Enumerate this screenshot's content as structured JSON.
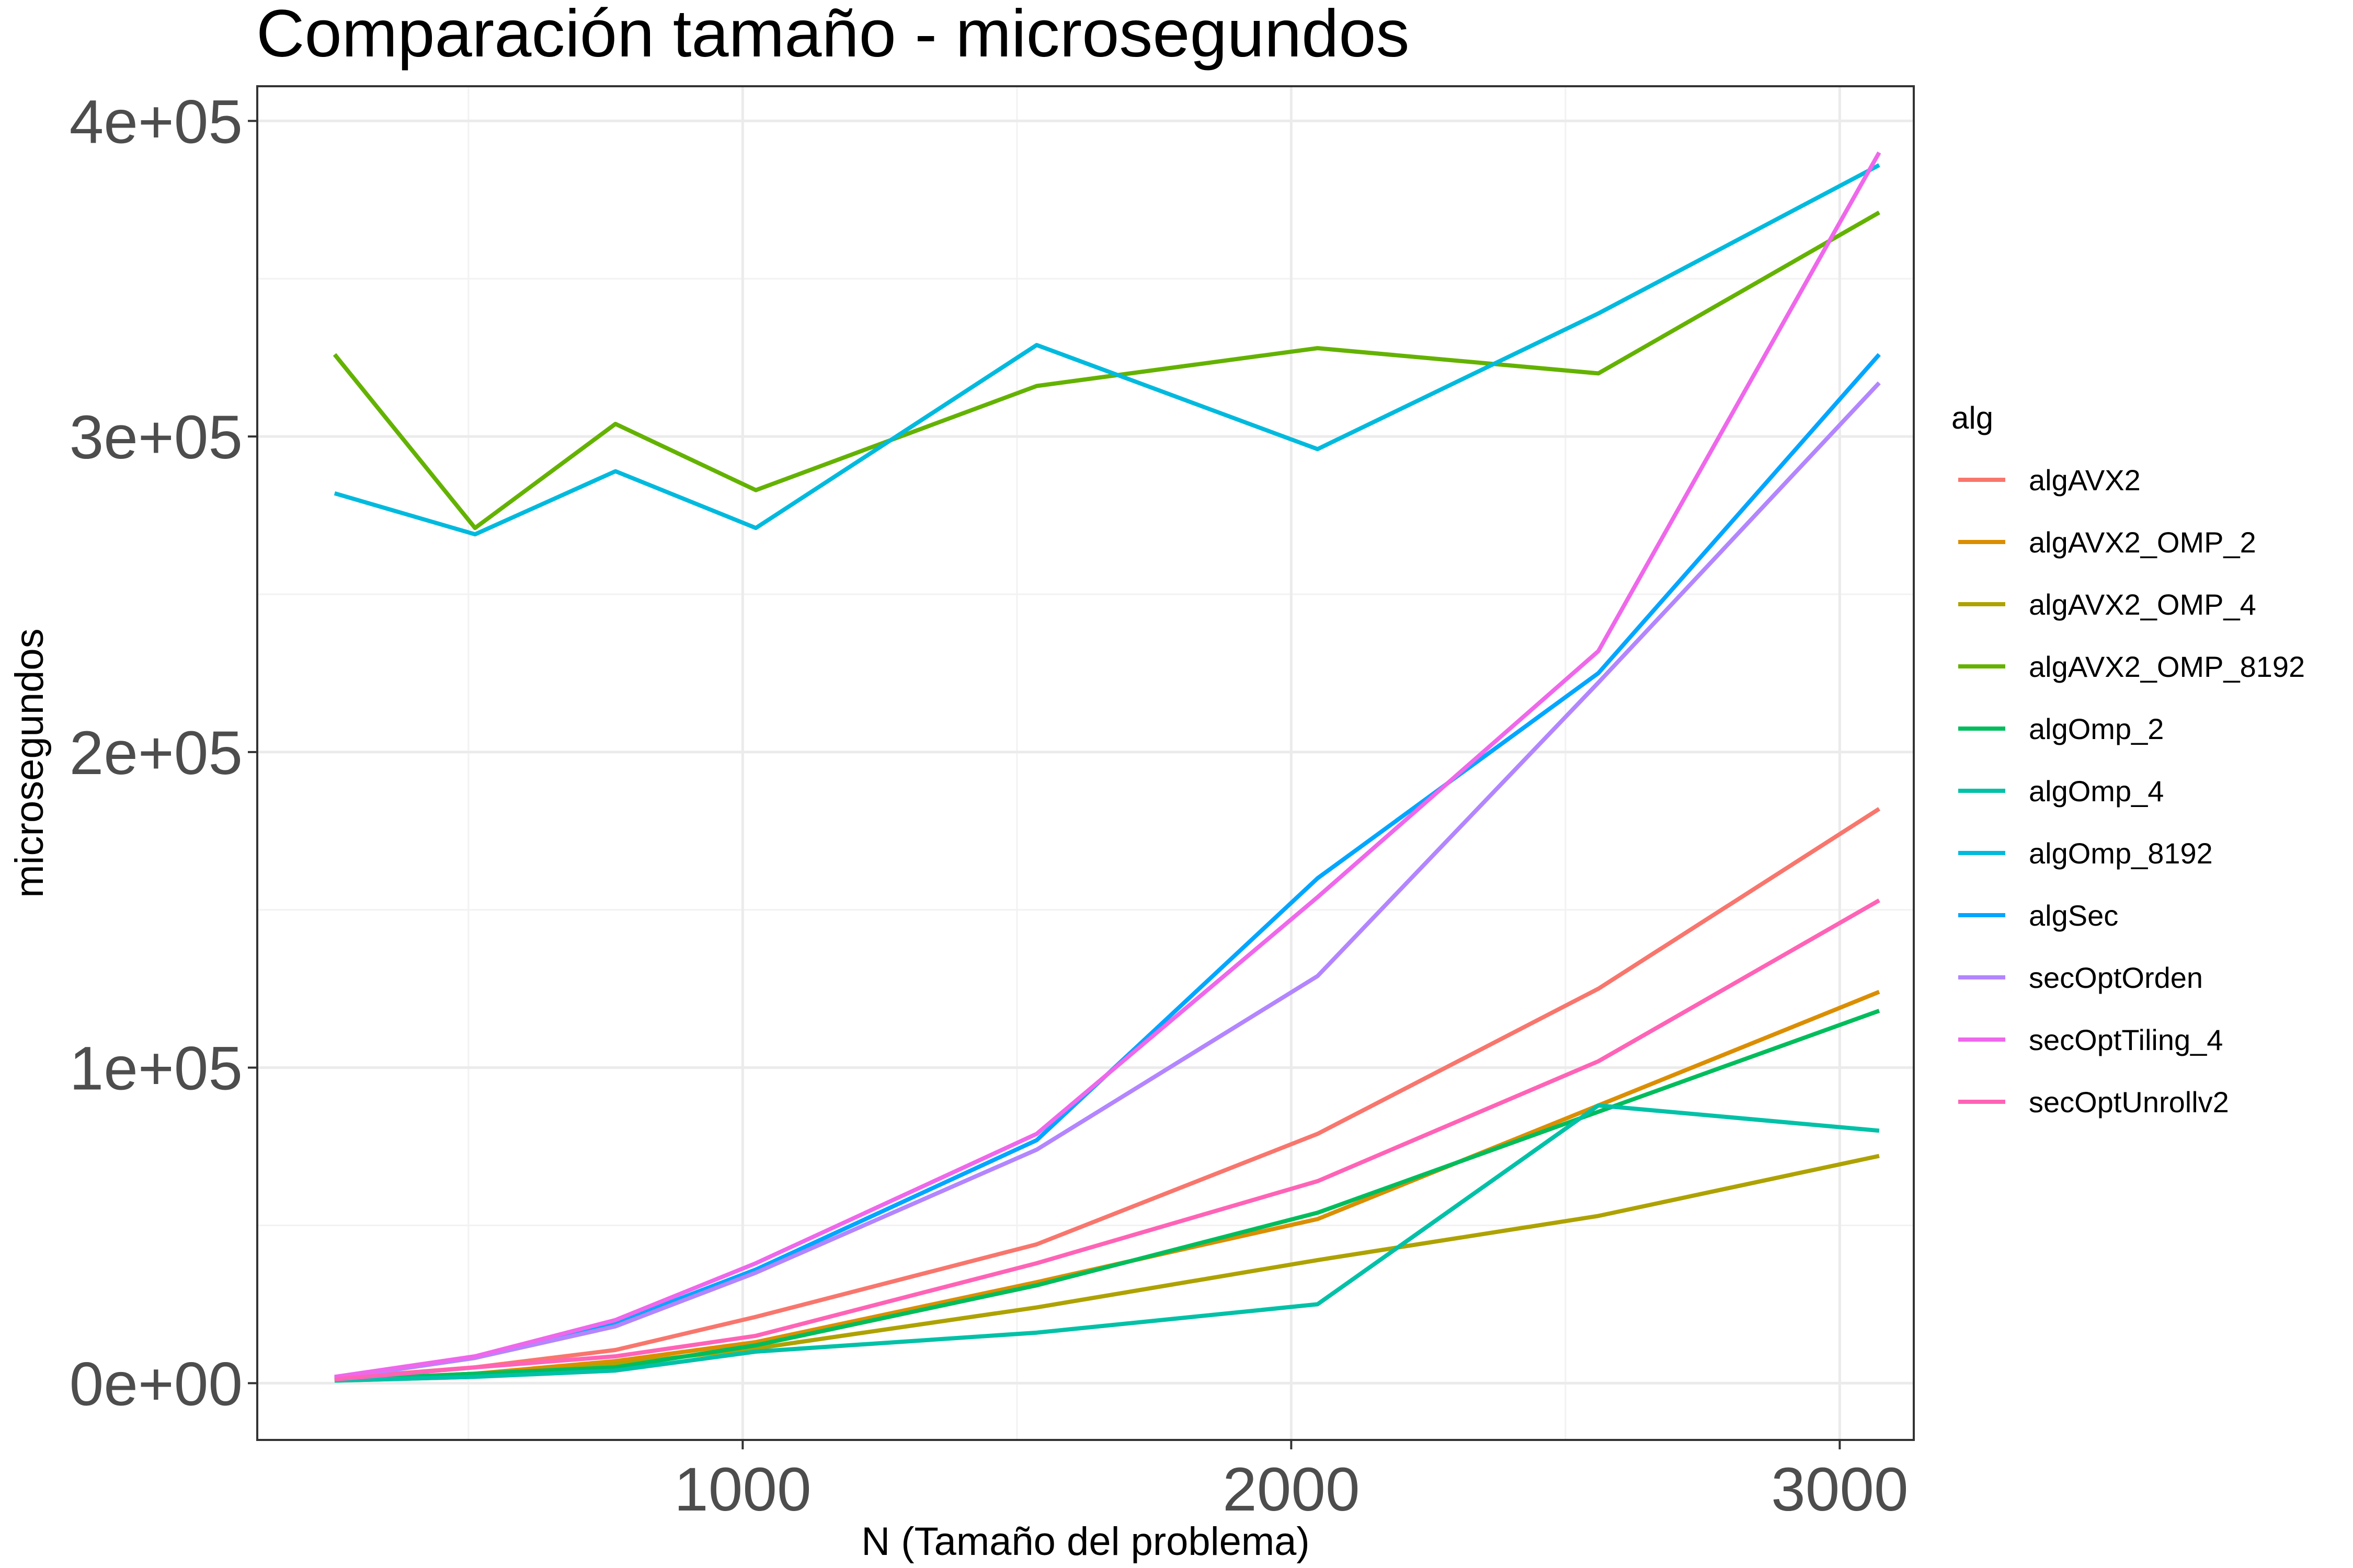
{
  "chart_data": {
    "type": "line",
    "title": "Comparación tamaño - microsegundos",
    "xlabel": "N (Tamaño del problema)",
    "ylabel": "microsegundos",
    "xlim": [
      115,
      3135
    ],
    "ylim": [
      -18000,
      411000
    ],
    "x_ticks": [
      1000,
      2000,
      3000
    ],
    "x_tick_labels": [
      "1000",
      "2000",
      "3000"
    ],
    "y_ticks": [
      0,
      100000,
      200000,
      300000,
      400000
    ],
    "y_tick_labels": [
      "0e+00",
      "1e+05",
      "2e+05",
      "3e+05",
      "4e+05"
    ],
    "grid": true,
    "legend": {
      "title": "alg",
      "position": "right"
    },
    "x": [
      256,
      512,
      768,
      1024,
      1536,
      2048,
      2560,
      3072
    ],
    "series": [
      {
        "name": "algAVX2",
        "color": "#F8766D",
        "values": [
          1500,
          5000,
          10500,
          21000,
          44000,
          79000,
          125000,
          182000
        ]
      },
      {
        "name": "algAVX2_OMP_2",
        "color": "#DB8E00",
        "values": [
          1000,
          3000,
          7000,
          13000,
          32000,
          52000,
          88000,
          124000
        ]
      },
      {
        "name": "algAVX2_OMP_4",
        "color": "#AEA200",
        "values": [
          800,
          2000,
          6000,
          11000,
          24000,
          39000,
          53000,
          72000
        ]
      },
      {
        "name": "algAVX2_OMP_8192",
        "color": "#64B200",
        "values": [
          326000,
          271000,
          304000,
          283000,
          316000,
          328000,
          320000,
          371000
        ]
      },
      {
        "name": "algOmp_2",
        "color": "#00BD5C",
        "values": [
          1000,
          3000,
          5000,
          12000,
          31000,
          54000,
          86000,
          118000
        ]
      },
      {
        "name": "algOmp_4",
        "color": "#00C1A7",
        "values": [
          800,
          2000,
          4000,
          10000,
          16000,
          25000,
          88000,
          80000
        ]
      },
      {
        "name": "algOmp_8192",
        "color": "#00BADE",
        "values": [
          282000,
          269000,
          289000,
          271000,
          329000,
          296000,
          339000,
          386000
        ]
      },
      {
        "name": "algSec",
        "color": "#00A6FF",
        "values": [
          1500,
          8000,
          19000,
          36000,
          77000,
          160000,
          225000,
          326000
        ]
      },
      {
        "name": "secOptOrden",
        "color": "#B385FF",
        "values": [
          1500,
          8000,
          18000,
          35000,
          74000,
          129000,
          222000,
          317000
        ]
      },
      {
        "name": "secOptTiling_4",
        "color": "#EF67EB",
        "values": [
          2000,
          8500,
          20000,
          38000,
          79000,
          154000,
          232000,
          390000
        ]
      },
      {
        "name": "secOptUnrollv2",
        "color": "#FF63B6",
        "values": [
          1200,
          5000,
          8500,
          15000,
          38000,
          64000,
          102000,
          153000
        ]
      }
    ]
  }
}
